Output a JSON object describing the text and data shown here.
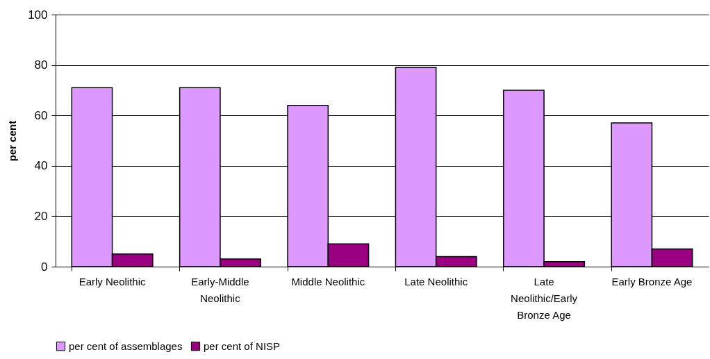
{
  "chart_data": {
    "type": "bar",
    "ylabel": "per cent",
    "categories": [
      "Early Neolithic",
      "Early-Middle Neolithic",
      "Middle Neolithic",
      "Late Neolithic",
      "Late Neolithic/Early Bronze Age",
      "Early Bronze Age"
    ],
    "series": [
      {
        "name": "per cent of assemblages",
        "color": "#dd99ff",
        "values": [
          71,
          71,
          64,
          79,
          70,
          57
        ]
      },
      {
        "name": "per cent of NISP",
        "color": "#990080",
        "values": [
          5,
          3,
          9,
          4,
          2,
          7
        ]
      }
    ],
    "ylim": [
      0,
      100
    ],
    "yticks": [
      0,
      20,
      40,
      60,
      80,
      100
    ],
    "grid": "y",
    "legend": "bottom"
  }
}
